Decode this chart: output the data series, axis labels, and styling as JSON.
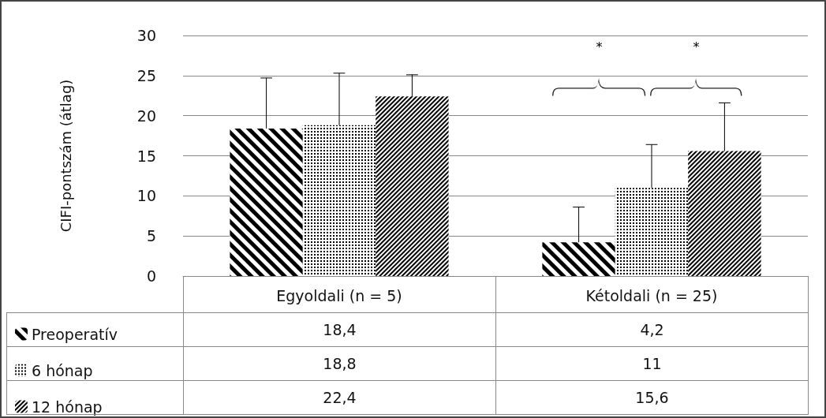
{
  "chart_data": {
    "type": "bar",
    "ylabel": "CIFI-pontszám (átlag)",
    "categories": [
      "Egyoldali (n = 5)",
      "Kétoldali (n = 25)"
    ],
    "series": [
      {
        "name": "Preoperatív",
        "color": "#000000",
        "values": [
          18.4,
          4.2
        ],
        "value_labels": [
          "18,4",
          "4,2"
        ],
        "errors": [
          [
            18.4,
            24.7
          ],
          [
            4.2,
            8.6
          ]
        ]
      },
      {
        "name": "6 hónap",
        "color": "#000000",
        "values": [
          18.8,
          11
        ],
        "value_labels": [
          "18,8",
          "11"
        ],
        "errors": [
          [
            18.8,
            25.3
          ],
          [
            11,
            16.4
          ]
        ]
      },
      {
        "name": "12 hónap",
        "color": "#000000",
        "values": [
          22.4,
          15.6
        ],
        "value_labels": [
          "22,4",
          "15,6"
        ],
        "errors": [
          [
            22.4,
            25.1
          ],
          [
            15.6,
            21.6
          ]
        ]
      }
    ],
    "ylim": [
      0,
      30
    ],
    "yticks": [
      0,
      5,
      10,
      15,
      20,
      25,
      30
    ],
    "grid": "y",
    "legend": "bottom",
    "annotations": [
      "*",
      "*"
    ]
  }
}
